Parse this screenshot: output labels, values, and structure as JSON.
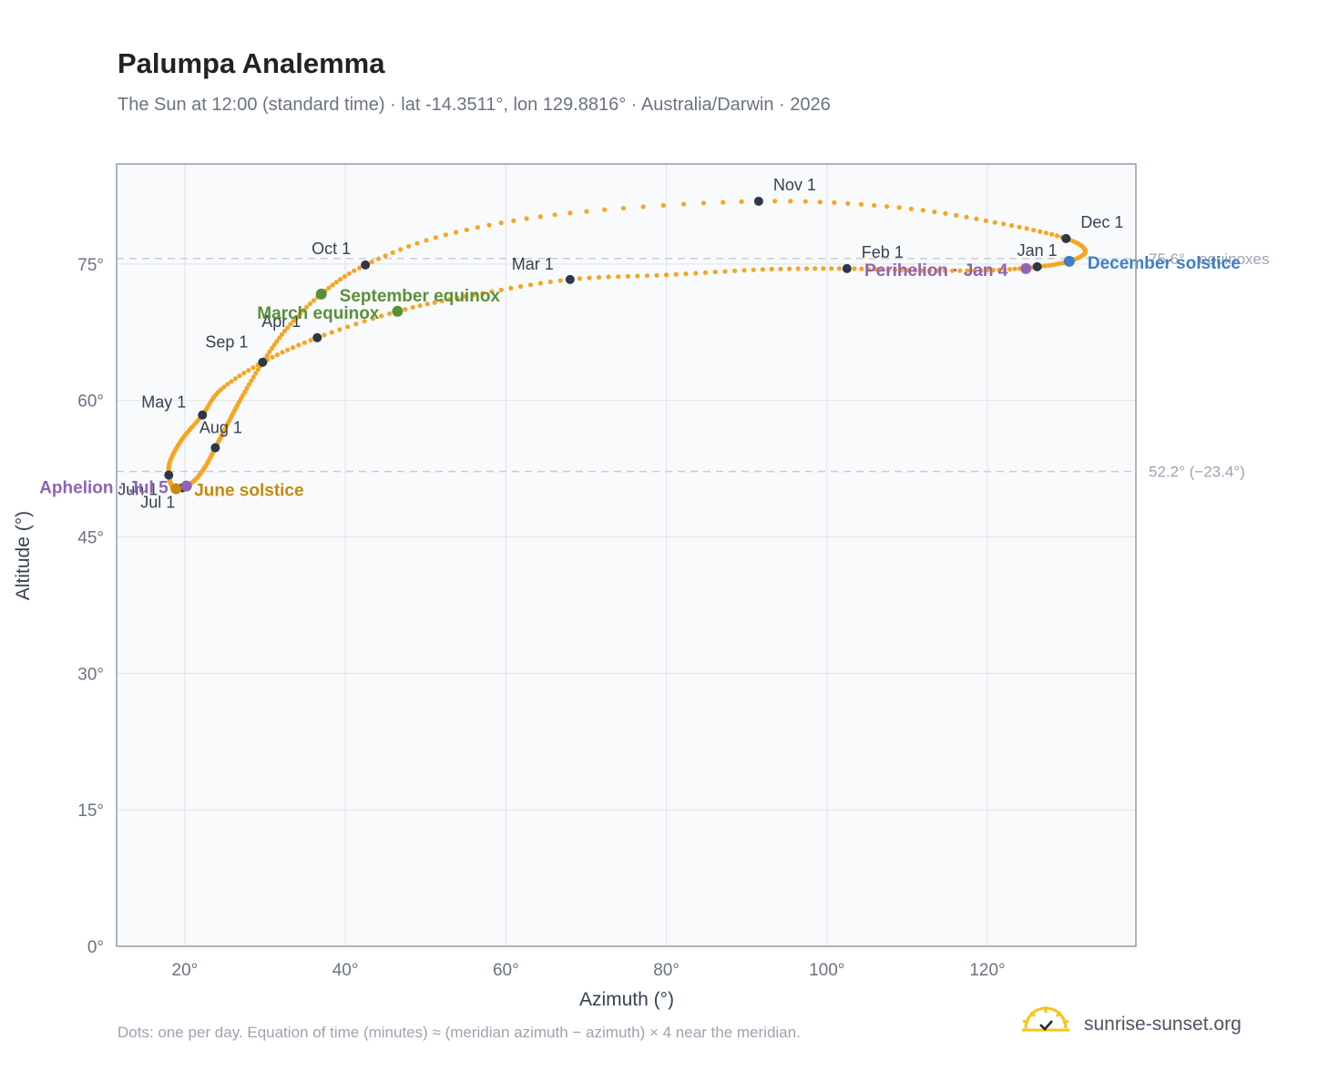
{
  "header": {
    "title": "Palumpa Analemma",
    "subtitle": "The Sun at 12:00 (standard time) · lat -14.3511°, lon 129.8816° · Australia/Darwin · 2026"
  },
  "footer": {
    "note": "Dots: one per day. Equation of time (minutes) ≈ (meridian azimuth − azimuth) × 4 near the meridian.",
    "brand": "sunrise-sunset.org"
  },
  "colors": {
    "path": "#f5a623",
    "month_dot": "#2d3748",
    "equinox": "#5a8f3a",
    "june_solstice": "#c48a0e",
    "december_solstice": "#3f7fc4",
    "apsis": "#9063b5",
    "plot_bg": "#f8fafc",
    "grid": "#e5e7eb",
    "frame": "#9aa3b0"
  },
  "chart_data": {
    "type": "scatter",
    "title": "Palumpa Analemma",
    "xlabel": "Azimuth (°)",
    "ylabel": "Altitude (°)",
    "xlim": [
      11.5,
      138.5
    ],
    "ylim": [
      0,
      86
    ],
    "x_ticks": [
      {
        "value": 20,
        "label": "20°"
      },
      {
        "value": 40,
        "label": "40°"
      },
      {
        "value": 60,
        "label": "60°"
      },
      {
        "value": 80,
        "label": "80°"
      },
      {
        "value": 100,
        "label": "100°"
      },
      {
        "value": 120,
        "label": "120°"
      }
    ],
    "y_ticks": [
      {
        "value": 0,
        "label": "0°"
      },
      {
        "value": 15,
        "label": "15°"
      },
      {
        "value": 30,
        "label": "30°"
      },
      {
        "value": 45,
        "label": "45°"
      },
      {
        "value": 60,
        "label": "60°"
      },
      {
        "value": 75,
        "label": "75°"
      }
    ],
    "grid": true,
    "reference_lines": [
      {
        "altitude": 75.6,
        "label": "75.6° · equinoxes"
      },
      {
        "altitude": 52.2,
        "label": "52.2° (−23.4°)"
      }
    ],
    "path_points": [
      {
        "date": "Jan 1",
        "az": 126.2,
        "alt": 74.7
      },
      {
        "date": "Jan 11",
        "az": 120.0,
        "alt": 74.3
      },
      {
        "date": "Jan 21",
        "az": 111.0,
        "alt": 74.3
      },
      {
        "date": "Feb 1",
        "az": 102.5,
        "alt": 74.5
      },
      {
        "date": "Feb 11",
        "az": 92.0,
        "alt": 74.4
      },
      {
        "date": "Feb 21",
        "az": 80.0,
        "alt": 73.8
      },
      {
        "date": "Mar 1",
        "az": 68.0,
        "alt": 73.3
      },
      {
        "date": "Mar 11",
        "az": 56.0,
        "alt": 71.6
      },
      {
        "date": "Mar 21",
        "az": 46.5,
        "alt": 69.8
      },
      {
        "date": "Apr 1",
        "az": 36.5,
        "alt": 66.9
      },
      {
        "date": "Apr 11",
        "az": 29.7,
        "alt": 64.2
      },
      {
        "date": "Apr 21",
        "az": 24.5,
        "alt": 61.2
      },
      {
        "date": "May 1",
        "az": 22.2,
        "alt": 58.4
      },
      {
        "date": "May 11",
        "az": 19.7,
        "alt": 55.8
      },
      {
        "date": "May 21",
        "az": 18.2,
        "alt": 53.4
      },
      {
        "date": "Jun 1",
        "az": 18.0,
        "alt": 51.8
      },
      {
        "date": "Jun 11",
        "az": 18.4,
        "alt": 50.6
      },
      {
        "date": "Jun 21",
        "az": 18.9,
        "alt": 50.3
      },
      {
        "date": "Jul 1",
        "az": 19.7,
        "alt": 50.4
      },
      {
        "date": "Jul 11",
        "az": 21.2,
        "alt": 51.2
      },
      {
        "date": "Jul 21",
        "az": 22.6,
        "alt": 52.8
      },
      {
        "date": "Aug 1",
        "az": 23.8,
        "alt": 54.8
      },
      {
        "date": "Aug 11",
        "az": 25.2,
        "alt": 57.2
      },
      {
        "date": "Aug 21",
        "az": 27.0,
        "alt": 60.2
      },
      {
        "date": "Sep 1",
        "az": 29.7,
        "alt": 64.2
      },
      {
        "date": "Sep 11",
        "az": 32.8,
        "alt": 68.0
      },
      {
        "date": "Sep 21",
        "az": 37.0,
        "alt": 71.7
      },
      {
        "date": "Oct 1",
        "az": 42.5,
        "alt": 74.9
      },
      {
        "date": "Oct 11",
        "az": 52.5,
        "alt": 78.2
      },
      {
        "date": "Oct 21",
        "az": 68.0,
        "alt": 80.6
      },
      {
        "date": "Nov 1",
        "az": 91.5,
        "alt": 81.9
      },
      {
        "date": "Nov 11",
        "az": 109.0,
        "alt": 81.2
      },
      {
        "date": "Nov 21",
        "az": 122.0,
        "alt": 79.4
      },
      {
        "date": "Dec 1",
        "az": 129.8,
        "alt": 77.8
      },
      {
        "date": "Dec 11",
        "az": 132.2,
        "alt": 76.4
      },
      {
        "date": "Dec 21",
        "az": 130.2,
        "alt": 75.3
      },
      {
        "date": "Jan 1",
        "az": 126.2,
        "alt": 74.7
      }
    ],
    "month_markers": [
      {
        "label": "Jan 1",
        "az": 126.2,
        "alt": 74.7
      },
      {
        "label": "Feb 1",
        "az": 102.5,
        "alt": 74.5
      },
      {
        "label": "Mar 1",
        "az": 68.0,
        "alt": 73.3
      },
      {
        "label": "Apr 1",
        "az": 36.5,
        "alt": 66.9
      },
      {
        "label": "May 1",
        "az": 22.2,
        "alt": 58.4
      },
      {
        "label": "Jun 1",
        "az": 18.0,
        "alt": 51.8
      },
      {
        "label": "Jul 1",
        "az": 19.7,
        "alt": 50.4
      },
      {
        "label": "Aug 1",
        "az": 23.8,
        "alt": 54.8
      },
      {
        "label": "Sep 1",
        "az": 29.7,
        "alt": 64.2
      },
      {
        "label": "Oct 1",
        "az": 42.5,
        "alt": 74.9
      },
      {
        "label": "Nov 1",
        "az": 91.5,
        "alt": 81.9
      },
      {
        "label": "Dec 1",
        "az": 129.8,
        "alt": 77.8
      }
    ],
    "events": [
      {
        "label": "March equinox",
        "az": 46.5,
        "alt": 69.8,
        "kind": "equinox"
      },
      {
        "label": "September equinox",
        "az": 37.0,
        "alt": 71.7,
        "kind": "equinox"
      },
      {
        "label": "June solstice",
        "az": 18.9,
        "alt": 50.3,
        "kind": "june_solstice"
      },
      {
        "label": "December solstice",
        "az": 130.2,
        "alt": 75.3,
        "kind": "december_solstice"
      },
      {
        "label": "Perihelion · Jan 4",
        "az": 124.8,
        "alt": 74.5,
        "kind": "apsis"
      },
      {
        "label": "Aphelion · Jul 5",
        "az": 20.2,
        "alt": 50.6,
        "kind": "apsis"
      }
    ]
  }
}
